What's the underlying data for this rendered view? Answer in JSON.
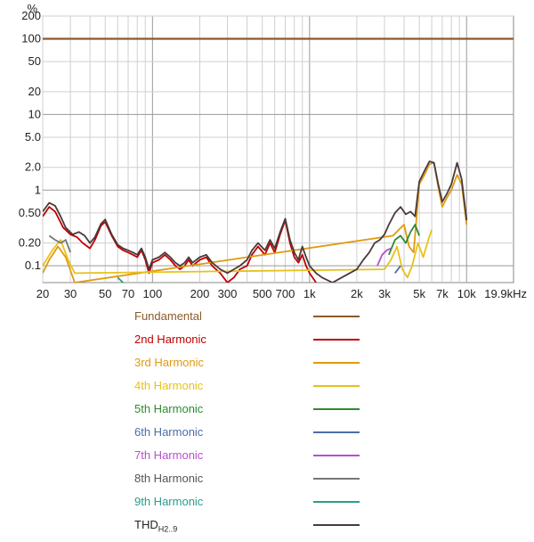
{
  "chart_data": {
    "type": "line",
    "y_unit": "%",
    "x_unit_label": "19.9kHz",
    "x_scale": "log",
    "y_scale": "log",
    "xlim": [
      20,
      19900
    ],
    "ylim": [
      0.06,
      200
    ],
    "grid": true,
    "x_ticks": [
      {
        "v": 20,
        "label": "20"
      },
      {
        "v": 30,
        "label": "30"
      },
      {
        "v": 50,
        "label": "50"
      },
      {
        "v": 70,
        "label": "70"
      },
      {
        "v": 100,
        "label": "100"
      },
      {
        "v": 200,
        "label": "200"
      },
      {
        "v": 300,
        "label": "300"
      },
      {
        "v": 500,
        "label": "500"
      },
      {
        "v": 700,
        "label": "700"
      },
      {
        "v": 1000,
        "label": "1k"
      },
      {
        "v": 2000,
        "label": "2k"
      },
      {
        "v": 3000,
        "label": "3k"
      },
      {
        "v": 5000,
        "label": "5k"
      },
      {
        "v": 7000,
        "label": "7k"
      },
      {
        "v": 10000,
        "label": "10k"
      }
    ],
    "x_minor": [
      40,
      60,
      80,
      90,
      400,
      600,
      800,
      900,
      4000,
      6000,
      8000,
      9000
    ],
    "y_ticks": [
      {
        "v": 200,
        "label": "200"
      },
      {
        "v": 100,
        "label": "100"
      },
      {
        "v": 50,
        "label": "50"
      },
      {
        "v": 20,
        "label": "20"
      },
      {
        "v": 10,
        "label": "10"
      },
      {
        "v": 5,
        "label": "5.0"
      },
      {
        "v": 2,
        "label": "2.0"
      },
      {
        "v": 1,
        "label": "1"
      },
      {
        "v": 0.5,
        "label": "0.50"
      },
      {
        "v": 0.2,
        "label": "0.20"
      },
      {
        "v": 0.1,
        "label": "0.1"
      }
    ],
    "y_major_lines": [
      100,
      10,
      1,
      0.1
    ],
    "series": [
      {
        "name": "Fundamental",
        "color": "#8B5A2B",
        "points": [
          [
            20,
            100
          ],
          [
            19900,
            100
          ]
        ]
      },
      {
        "name": "2nd Harmonic",
        "color": "#C00000",
        "points": [
          [
            20,
            0.45
          ],
          [
            22,
            0.6
          ],
          [
            24,
            0.52
          ],
          [
            27,
            0.32
          ],
          [
            30,
            0.26
          ],
          [
            33,
            0.24
          ],
          [
            36,
            0.2
          ],
          [
            40,
            0.17
          ],
          [
            43,
            0.22
          ],
          [
            47,
            0.34
          ],
          [
            50,
            0.38
          ],
          [
            55,
            0.25
          ],
          [
            60,
            0.18
          ],
          [
            65,
            0.16
          ],
          [
            70,
            0.15
          ],
          [
            75,
            0.14
          ],
          [
            80,
            0.13
          ],
          [
            85,
            0.16
          ],
          [
            90,
            0.12
          ],
          [
            95,
            0.08
          ],
          [
            100,
            0.11
          ],
          [
            110,
            0.12
          ],
          [
            120,
            0.14
          ],
          [
            130,
            0.12
          ],
          [
            140,
            0.1
          ],
          [
            150,
            0.09
          ],
          [
            160,
            0.1
          ],
          [
            170,
            0.12
          ],
          [
            180,
            0.1
          ],
          [
            200,
            0.12
          ],
          [
            220,
            0.13
          ],
          [
            240,
            0.1
          ],
          [
            270,
            0.08
          ],
          [
            300,
            0.06
          ],
          [
            330,
            0.07
          ],
          [
            360,
            0.09
          ],
          [
            400,
            0.1
          ],
          [
            430,
            0.14
          ],
          [
            470,
            0.18
          ],
          [
            520,
            0.14
          ],
          [
            560,
            0.2
          ],
          [
            600,
            0.15
          ],
          [
            650,
            0.26
          ],
          [
            700,
            0.4
          ],
          [
            750,
            0.2
          ],
          [
            800,
            0.13
          ],
          [
            850,
            0.11
          ],
          [
            900,
            0.14
          ],
          [
            950,
            0.1
          ],
          [
            1000,
            0.08
          ],
          [
            1100,
            0.06
          ]
        ]
      },
      {
        "name": "3rd Harmonic",
        "color": "#E09A10",
        "points": [
          [
            20,
            0.08
          ],
          [
            22,
            0.12
          ],
          [
            25,
            0.18
          ],
          [
            28,
            0.13
          ],
          [
            32,
            0.06
          ],
          [
            3400,
            0.25
          ],
          [
            3700,
            0.3
          ],
          [
            4000,
            0.35
          ],
          [
            4300,
            0.18
          ],
          [
            4600,
            0.15
          ],
          [
            5000,
            1.2
          ],
          [
            5400,
            1.6
          ],
          [
            5800,
            2.2
          ],
          [
            6200,
            2.3
          ],
          [
            6600,
            1.1
          ],
          [
            7000,
            0.6
          ],
          [
            7500,
            0.8
          ],
          [
            8000,
            1.0
          ],
          [
            8700,
            1.6
          ],
          [
            9300,
            1.2
          ],
          [
            10000,
            0.35
          ]
        ]
      },
      {
        "name": "4th Harmonic",
        "color": "#E6C21A",
        "points": [
          [
            20,
            0.1
          ],
          [
            23,
            0.16
          ],
          [
            26,
            0.22
          ],
          [
            29,
            0.12
          ],
          [
            32,
            0.08
          ],
          [
            3000,
            0.09
          ],
          [
            3300,
            0.12
          ],
          [
            3600,
            0.18
          ],
          [
            3900,
            0.09
          ],
          [
            4200,
            0.07
          ],
          [
            4500,
            0.1
          ],
          [
            4900,
            0.2
          ],
          [
            5300,
            0.13
          ],
          [
            5700,
            0.22
          ],
          [
            6000,
            0.3
          ]
        ]
      },
      {
        "name": "5th Harmonic",
        "color": "#2E8B2E",
        "points": [
          [
            3200,
            0.14
          ],
          [
            3500,
            0.22
          ],
          [
            3800,
            0.25
          ],
          [
            4100,
            0.2
          ],
          [
            4400,
            0.28
          ],
          [
            4700,
            0.35
          ],
          [
            5000,
            0.25
          ]
        ]
      },
      {
        "name": "6th Harmonic",
        "color": "#4A6FA5",
        "points": [
          [
            3500,
            0.08
          ],
          [
            3800,
            0.1
          ]
        ]
      },
      {
        "name": "7th Harmonic",
        "color": "#B84FD0",
        "points": [
          [
            2700,
            0.1
          ],
          [
            2900,
            0.14
          ],
          [
            3100,
            0.16
          ],
          [
            3300,
            0.17
          ]
        ]
      },
      {
        "name": "8th Harmonic",
        "color": "#777777",
        "points": [
          [
            22,
            0.25
          ],
          [
            24,
            0.22
          ],
          [
            26,
            0.2
          ],
          [
            28,
            0.22
          ],
          [
            30,
            0.15
          ]
        ]
      },
      {
        "name": "9th Harmonic",
        "color": "#2A9D8F",
        "points": [
          [
            60,
            0.07
          ],
          [
            65,
            0.06
          ]
        ]
      },
      {
        "name": "THD",
        "color": "#4A3A3A",
        "points": [
          [
            20,
            0.52
          ],
          [
            22,
            0.68
          ],
          [
            24,
            0.62
          ],
          [
            26,
            0.45
          ],
          [
            28,
            0.32
          ],
          [
            31,
            0.26
          ],
          [
            34,
            0.28
          ],
          [
            37,
            0.25
          ],
          [
            40,
            0.2
          ],
          [
            43,
            0.24
          ],
          [
            47,
            0.36
          ],
          [
            50,
            0.41
          ],
          [
            55,
            0.26
          ],
          [
            60,
            0.19
          ],
          [
            65,
            0.17
          ],
          [
            70,
            0.16
          ],
          [
            75,
            0.15
          ],
          [
            80,
            0.14
          ],
          [
            85,
            0.17
          ],
          [
            90,
            0.13
          ],
          [
            95,
            0.09
          ],
          [
            100,
            0.12
          ],
          [
            110,
            0.13
          ],
          [
            120,
            0.15
          ],
          [
            130,
            0.13
          ],
          [
            140,
            0.11
          ],
          [
            150,
            0.1
          ],
          [
            160,
            0.11
          ],
          [
            170,
            0.13
          ],
          [
            180,
            0.11
          ],
          [
            200,
            0.13
          ],
          [
            220,
            0.14
          ],
          [
            240,
            0.11
          ],
          [
            270,
            0.09
          ],
          [
            300,
            0.08
          ],
          [
            330,
            0.09
          ],
          [
            360,
            0.1
          ],
          [
            400,
            0.12
          ],
          [
            430,
            0.16
          ],
          [
            470,
            0.2
          ],
          [
            520,
            0.16
          ],
          [
            560,
            0.22
          ],
          [
            600,
            0.17
          ],
          [
            650,
            0.28
          ],
          [
            700,
            0.42
          ],
          [
            750,
            0.22
          ],
          [
            800,
            0.15
          ],
          [
            850,
            0.12
          ],
          [
            900,
            0.18
          ],
          [
            950,
            0.13
          ],
          [
            1000,
            0.1
          ],
          [
            1100,
            0.08
          ],
          [
            1200,
            0.07
          ],
          [
            1400,
            0.06
          ],
          [
            2000,
            0.09
          ],
          [
            2200,
            0.12
          ],
          [
            2400,
            0.15
          ],
          [
            2600,
            0.2
          ],
          [
            2800,
            0.22
          ],
          [
            3000,
            0.26
          ],
          [
            3200,
            0.35
          ],
          [
            3500,
            0.5
          ],
          [
            3800,
            0.6
          ],
          [
            4100,
            0.48
          ],
          [
            4400,
            0.52
          ],
          [
            4700,
            0.45
          ],
          [
            5000,
            1.3
          ],
          [
            5400,
            1.8
          ],
          [
            5800,
            2.4
          ],
          [
            6200,
            2.3
          ],
          [
            6600,
            1.2
          ],
          [
            7000,
            0.7
          ],
          [
            7500,
            0.9
          ],
          [
            8000,
            1.2
          ],
          [
            8700,
            2.3
          ],
          [
            9300,
            1.4
          ],
          [
            10000,
            0.4
          ]
        ]
      }
    ]
  },
  "legend": [
    {
      "label": "Fundamental",
      "color": "#8B5A2B"
    },
    {
      "label": "2nd Harmonic",
      "color": "#C00000"
    },
    {
      "label": "3rd Harmonic",
      "color": "#E09A10"
    },
    {
      "label": "4th Harmonic",
      "color": "#E6C21A"
    },
    {
      "label": "5th Harmonic",
      "color": "#2E8B2E"
    },
    {
      "label": "6th Harmonic",
      "color": "#4A6FA5"
    },
    {
      "label": "7th Harmonic",
      "color": "#B84FD0"
    },
    {
      "label": "8th Harmonic",
      "color": "#777777"
    },
    {
      "label": "9th Harmonic",
      "color": "#2A9D8F"
    }
  ],
  "thd_legend": {
    "label_main": "THD",
    "label_sub": "H2..9",
    "color": "#4A3A3A"
  }
}
